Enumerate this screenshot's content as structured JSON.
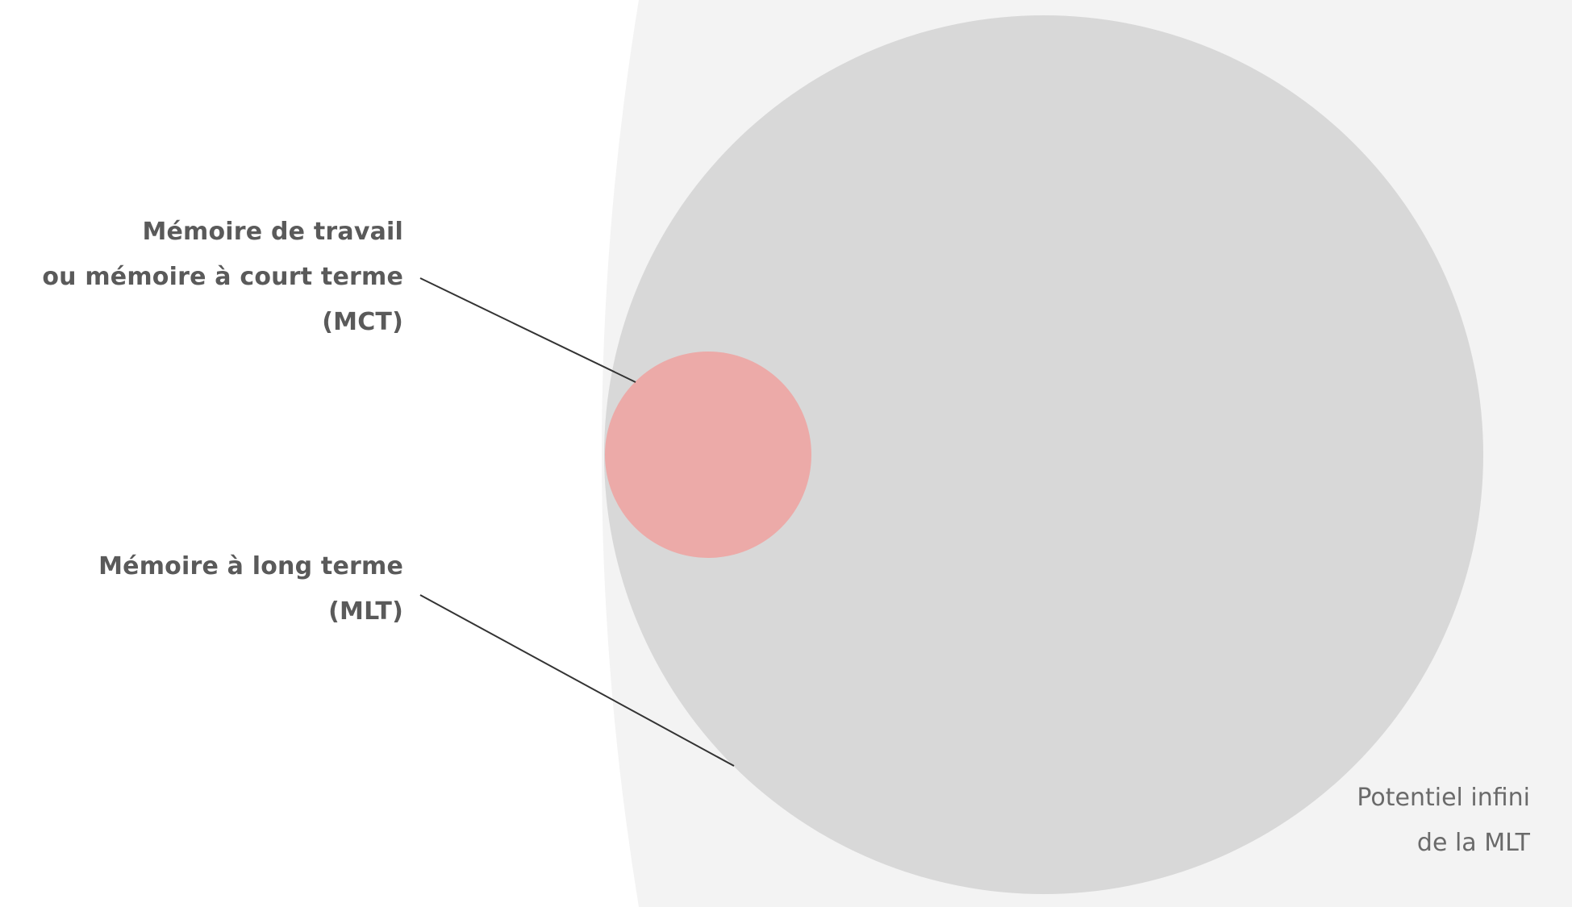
{
  "diagram": {
    "labels": {
      "mct": {
        "line1": "Mémoire de travail",
        "line2": "ou mémoire à court terme",
        "line3": "(MCT)"
      },
      "mlt": {
        "line1": "Mémoire à long terme",
        "line2": "(MLT)"
      },
      "potential": {
        "line1": "Potentiel infini",
        "line2": "de la MLT"
      }
    },
    "colors": {
      "background": "#ffffff",
      "infinite_area": "#f3f3f3",
      "long_term_memory": "#d8d8d8",
      "short_term_memory": "#ecaaa8",
      "leader_line": "#333333"
    }
  }
}
